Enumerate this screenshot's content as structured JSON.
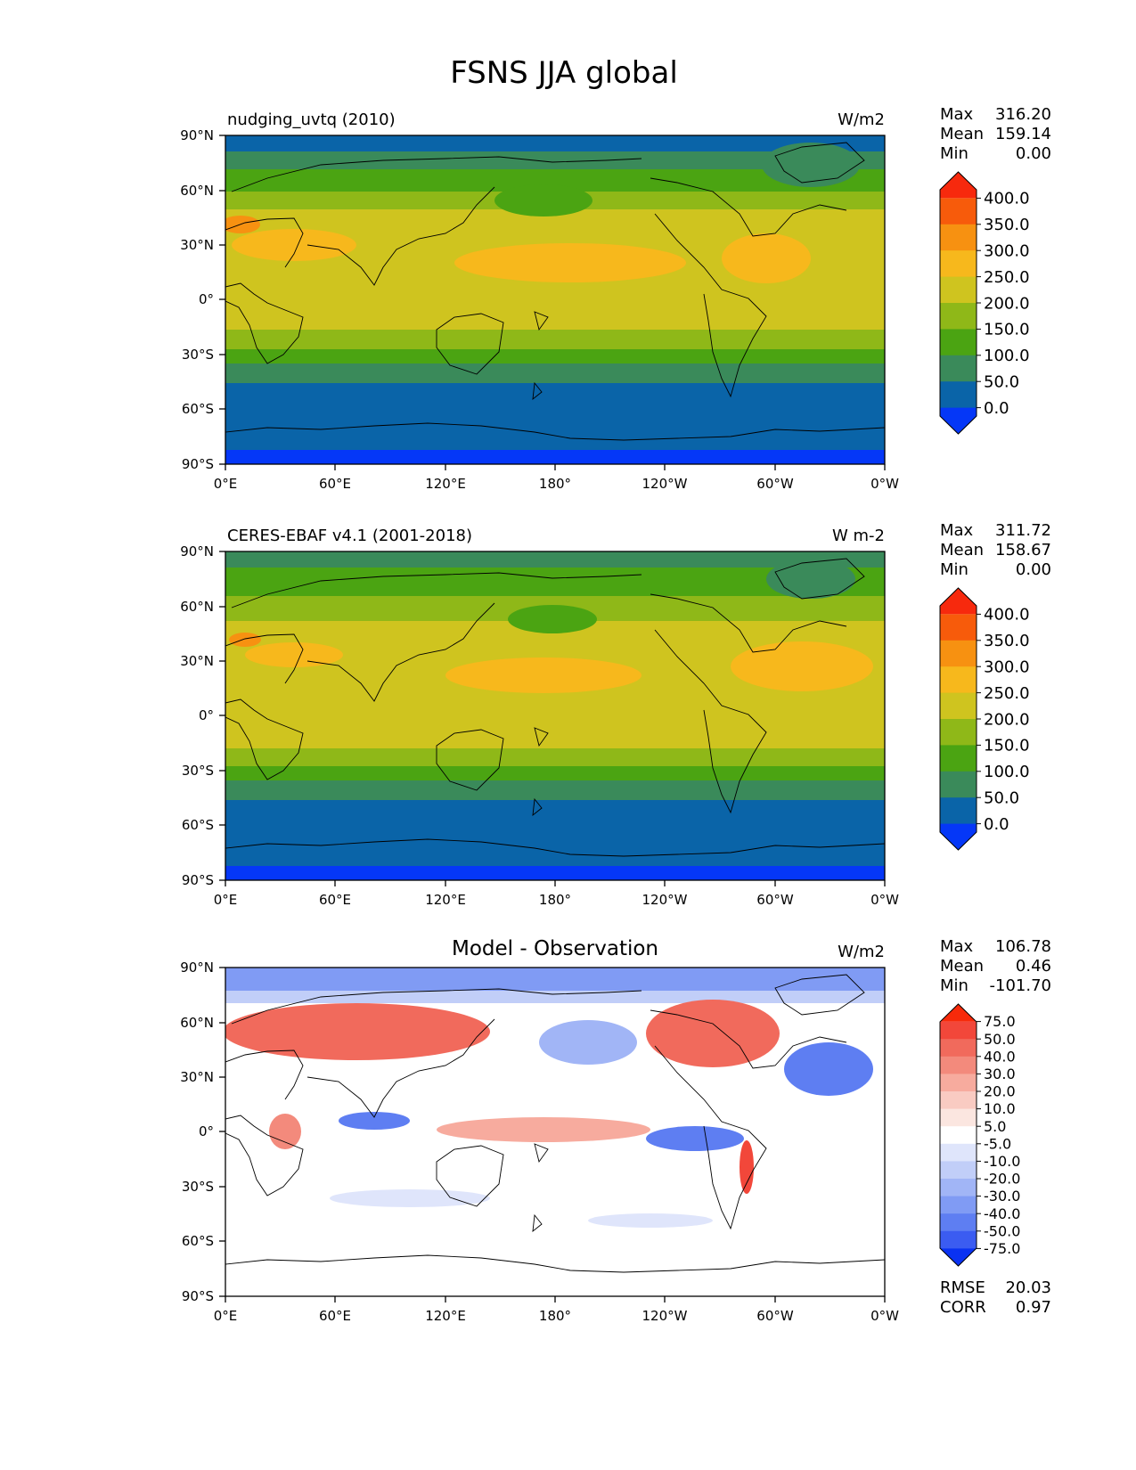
{
  "title": "FSNS JJA global",
  "x_ticks": [
    "0°E",
    "60°E",
    "120°E",
    "180°",
    "120°W",
    "60°W",
    "0°W"
  ],
  "y_ticks": [
    "90°N",
    "60°N",
    "30°N",
    "0°",
    "30°S",
    "60°S",
    "90°S"
  ],
  "panels": [
    {
      "name": "test",
      "title_left": "nudging_uvtq (2010)",
      "title_center": "",
      "units": "W/m2",
      "stats_labels": [
        "Max",
        "Mean",
        "Min"
      ],
      "stats_values": [
        "316.20",
        "159.14",
        "0.00"
      ],
      "colorbar_labels": [
        "400.0",
        "350.0",
        "300.0",
        "250.0",
        "200.0",
        "150.0",
        "100.0",
        "50.0",
        "0.0"
      ],
      "colorbar_colors": [
        "#f7290d",
        "#f75b0b",
        "#f79111",
        "#f7b81c",
        "#cfc41f",
        "#8fb818",
        "#4ba412",
        "#3a8a5a",
        "#0a64a8",
        "#0537f7"
      ],
      "extra_labels": [],
      "extra_values": []
    },
    {
      "name": "reference",
      "title_left": "CERES-EBAF v4.1 (2001-2018)",
      "title_center": "",
      "units": "W m-2",
      "stats_labels": [
        "Max",
        "Mean",
        "Min"
      ],
      "stats_values": [
        "311.72",
        "158.67",
        "0.00"
      ],
      "colorbar_labels": [
        "400.0",
        "350.0",
        "300.0",
        "250.0",
        "200.0",
        "150.0",
        "100.0",
        "50.0",
        "0.0"
      ],
      "colorbar_colors": [
        "#f7290d",
        "#f75b0b",
        "#f79111",
        "#f7b81c",
        "#cfc41f",
        "#8fb818",
        "#4ba412",
        "#3a8a5a",
        "#0a64a8",
        "#0537f7"
      ],
      "extra_labels": [],
      "extra_values": []
    },
    {
      "name": "difference",
      "title_left": "",
      "title_center": "Model - Observation",
      "units": "W/m2",
      "stats_labels": [
        "Max",
        "Mean",
        "Min"
      ],
      "stats_values": [
        "106.78",
        "0.46",
        "-101.70"
      ],
      "colorbar_labels": [
        "75.0",
        "50.0",
        "40.0",
        "30.0",
        "20.0",
        "10.0",
        "5.0",
        "-5.0",
        "-10.0",
        "-20.0",
        "-30.0",
        "-40.0",
        "-50.0",
        "-75.0"
      ],
      "colorbar_colors": [
        "#f72a0a",
        "#f2473a",
        "#f16a5c",
        "#f38a7c",
        "#f7ab9e",
        "#f9cbc2",
        "#fbe6e0",
        "#ffffff",
        "#dfe5fb",
        "#c1cef8",
        "#a1b5f6",
        "#809bf4",
        "#5e7ef2",
        "#3b5cf1",
        "#0a32f2"
      ],
      "extra_labels": [
        "RMSE",
        "CORR"
      ],
      "extra_values": [
        "20.03",
        "0.97"
      ]
    }
  ]
}
